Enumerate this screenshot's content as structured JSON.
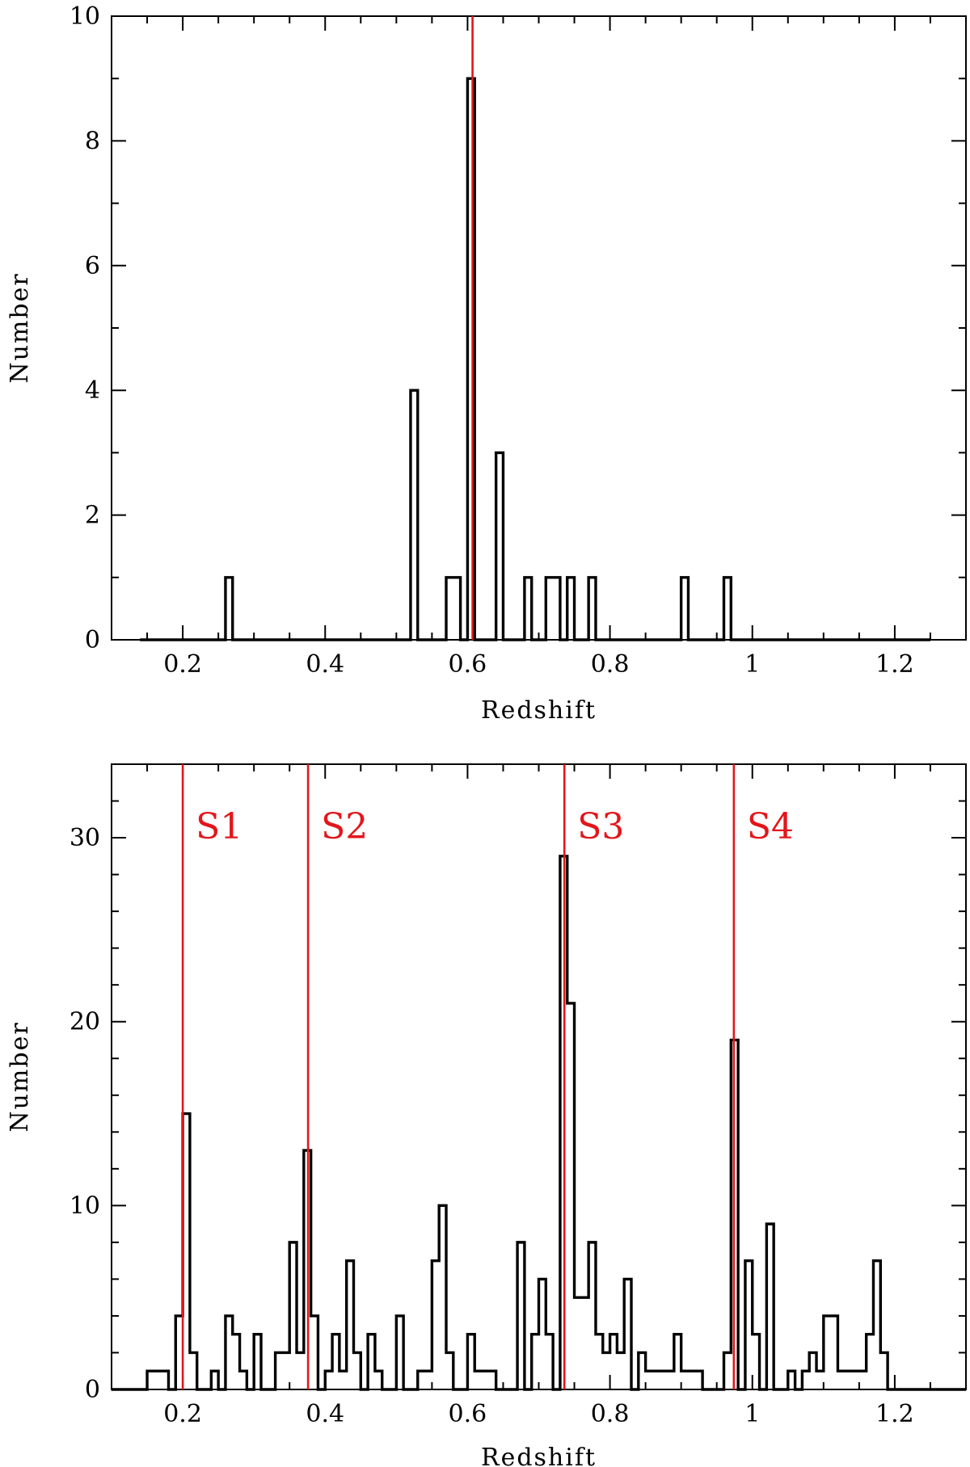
{
  "colors": {
    "histogram": "#000000",
    "marker": "#e3161b"
  },
  "chart_data": [
    {
      "type": "histogram",
      "xlabel": "Redshift",
      "ylabel": "Number",
      "xlim": [
        0.1,
        1.3
      ],
      "ylim": [
        0,
        10
      ],
      "x_ticks": [
        {
          "v": 0.2,
          "label": "0.2"
        },
        {
          "v": 0.4,
          "label": "0.4"
        },
        {
          "v": 0.6,
          "label": "0.6"
        },
        {
          "v": 0.8,
          "label": "0.8"
        },
        {
          "v": 1.0,
          "label": "1"
        },
        {
          "v": 1.2,
          "label": "1.2"
        }
      ],
      "y_ticks": [
        {
          "v": 0,
          "label": "0"
        },
        {
          "v": 2,
          "label": "2"
        },
        {
          "v": 4,
          "label": "4"
        },
        {
          "v": 6,
          "label": "6"
        },
        {
          "v": 8,
          "label": "8"
        },
        {
          "v": 10,
          "label": "10"
        }
      ],
      "x_minor_step": 0.05,
      "y_minor_step": 1,
      "bin_width": 0.01,
      "bins": [
        [
          0.14,
          0
        ],
        [
          0.26,
          1
        ],
        [
          0.27,
          0
        ],
        [
          0.52,
          4
        ],
        [
          0.53,
          0
        ],
        [
          0.57,
          1
        ],
        [
          0.59,
          0
        ],
        [
          0.6,
          9
        ],
        [
          0.61,
          0
        ],
        [
          0.64,
          3
        ],
        [
          0.65,
          0
        ],
        [
          0.68,
          1
        ],
        [
          0.69,
          0
        ],
        [
          0.71,
          1
        ],
        [
          0.73,
          0
        ],
        [
          0.74,
          1
        ],
        [
          0.75,
          0
        ],
        [
          0.77,
          1
        ],
        [
          0.78,
          0
        ],
        [
          0.9,
          1
        ],
        [
          0.91,
          0
        ],
        [
          0.96,
          1
        ],
        [
          0.97,
          0
        ],
        [
          1.25,
          0
        ]
      ],
      "markers": [
        {
          "x": 0.607,
          "label": ""
        }
      ]
    },
    {
      "type": "histogram",
      "xlabel": "Redshift",
      "ylabel": "Number",
      "xlim": [
        0.1,
        1.3
      ],
      "ylim": [
        0,
        34
      ],
      "x_ticks": [
        {
          "v": 0.2,
          "label": "0.2"
        },
        {
          "v": 0.4,
          "label": "0.4"
        },
        {
          "v": 0.6,
          "label": "0.6"
        },
        {
          "v": 0.8,
          "label": "0.8"
        },
        {
          "v": 1.0,
          "label": "1"
        },
        {
          "v": 1.2,
          "label": "1.2"
        }
      ],
      "y_ticks": [
        {
          "v": 0,
          "label": "0"
        },
        {
          "v": 10,
          "label": "10"
        },
        {
          "v": 20,
          "label": "20"
        },
        {
          "v": 30,
          "label": "30"
        }
      ],
      "x_minor_step": 0.05,
      "y_minor_step": 2,
      "bin_width": 0.01,
      "bins": [
        [
          0.1,
          0
        ],
        [
          0.15,
          1
        ],
        [
          0.18,
          0
        ],
        [
          0.19,
          4
        ],
        [
          0.2,
          15
        ],
        [
          0.21,
          2
        ],
        [
          0.22,
          0
        ],
        [
          0.24,
          1
        ],
        [
          0.25,
          0
        ],
        [
          0.26,
          4
        ],
        [
          0.27,
          3
        ],
        [
          0.28,
          1
        ],
        [
          0.29,
          0
        ],
        [
          0.3,
          3
        ],
        [
          0.31,
          0
        ],
        [
          0.33,
          2
        ],
        [
          0.35,
          8
        ],
        [
          0.36,
          2
        ],
        [
          0.37,
          13
        ],
        [
          0.38,
          4
        ],
        [
          0.39,
          0
        ],
        [
          0.4,
          1
        ],
        [
          0.41,
          3
        ],
        [
          0.42,
          1
        ],
        [
          0.43,
          7
        ],
        [
          0.44,
          2
        ],
        [
          0.45,
          0
        ],
        [
          0.46,
          3
        ],
        [
          0.47,
          1
        ],
        [
          0.48,
          0
        ],
        [
          0.5,
          4
        ],
        [
          0.51,
          0
        ],
        [
          0.53,
          1
        ],
        [
          0.55,
          7
        ],
        [
          0.56,
          10
        ],
        [
          0.57,
          2
        ],
        [
          0.58,
          0
        ],
        [
          0.6,
          3
        ],
        [
          0.61,
          1
        ],
        [
          0.64,
          0
        ],
        [
          0.67,
          8
        ],
        [
          0.68,
          0
        ],
        [
          0.69,
          3
        ],
        [
          0.7,
          6
        ],
        [
          0.71,
          3
        ],
        [
          0.72,
          0
        ],
        [
          0.73,
          29
        ],
        [
          0.74,
          21
        ],
        [
          0.75,
          5
        ],
        [
          0.77,
          8
        ],
        [
          0.78,
          3
        ],
        [
          0.79,
          2
        ],
        [
          0.8,
          3
        ],
        [
          0.81,
          2
        ],
        [
          0.82,
          6
        ],
        [
          0.83,
          0
        ],
        [
          0.84,
          2
        ],
        [
          0.85,
          1
        ],
        [
          0.89,
          3
        ],
        [
          0.9,
          1
        ],
        [
          0.93,
          0
        ],
        [
          0.96,
          2
        ],
        [
          0.97,
          19
        ],
        [
          0.98,
          0
        ],
        [
          0.99,
          7
        ],
        [
          1.0,
          3
        ],
        [
          1.01,
          0
        ],
        [
          1.02,
          9
        ],
        [
          1.03,
          0
        ],
        [
          1.05,
          1
        ],
        [
          1.06,
          0
        ],
        [
          1.07,
          1
        ],
        [
          1.08,
          2
        ],
        [
          1.09,
          1
        ],
        [
          1.1,
          4
        ],
        [
          1.12,
          1
        ],
        [
          1.16,
          3
        ],
        [
          1.17,
          7
        ],
        [
          1.18,
          2
        ],
        [
          1.19,
          0
        ],
        [
          1.3,
          0
        ]
      ],
      "markers": [
        {
          "x": 0.2,
          "label": "S1"
        },
        {
          "x": 0.376,
          "label": "S2"
        },
        {
          "x": 0.736,
          "label": "S3"
        },
        {
          "x": 0.974,
          "label": "S4"
        }
      ]
    }
  ]
}
